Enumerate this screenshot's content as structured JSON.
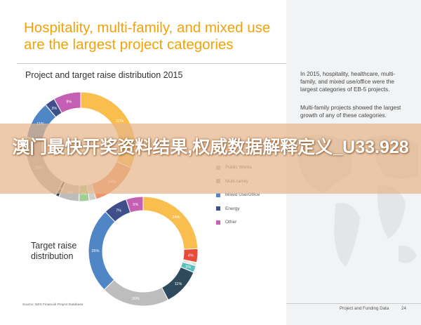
{
  "headline": "Hospitality, multi-family, and mixed use are the largest project categories",
  "subtitle": "Project and target raise distribution 2015",
  "side_notes": [
    "In 2015, hospitality, healthcare, multi-family, and mixed use/office were the largest categories of EB-5 projects.",
    "Multi-family projects showed the largest growth of any of these categories."
  ],
  "target_label": "Target raise distribution",
  "source": "Source: NES Financial Project Database",
  "footer": {
    "title": "Project and Funding Data",
    "page": "24"
  },
  "overlay_text": "澳门最快开奖资料结果,权威数据解释定义_U33.928",
  "colors": {
    "hospitality": "#f9be4e",
    "public_works": "#bdbdbd",
    "multi_family": "#ababab",
    "mixed_use": "#4f86c6",
    "energy": "#3f4f8c",
    "other": "#c55fb4",
    "red": "#e84b3a",
    "teal": "#5cbfbd",
    "darkteal": "#2f4a5c"
  },
  "legend": [
    {
      "label": "Public Works",
      "color": "#bdbdbd",
      "icon": "square-swatch"
    },
    {
      "label": "Multi-family",
      "color": "#ababab",
      "icon": "square-swatch"
    },
    {
      "label": "Mixed Use/Office",
      "color": "#4f86c6",
      "icon": "square-swatch"
    },
    {
      "label": "Energy",
      "color": "#3f4f8c",
      "icon": "square-swatch"
    },
    {
      "label": "Other",
      "color": "#c55fb4",
      "icon": "square-swatch"
    }
  ],
  "chart_data": [
    {
      "type": "pie",
      "title": "Project and target raise distribution 2015",
      "donut": true,
      "slices": [
        {
          "value": 31,
          "label": "31%",
          "color": "#f9be4e"
        },
        {
          "value": 14,
          "label": "14%",
          "color": "#f2936a"
        },
        {
          "value": 2,
          "label": "2%",
          "color": "#cfcfcf"
        },
        {
          "value": 3,
          "label": "3%",
          "color": "#9fcf95"
        },
        {
          "value": 6,
          "label": "6%",
          "color": "#bdbdbd"
        },
        {
          "value": 1,
          "label": "1%",
          "color": "#2f4a5c"
        },
        {
          "value": 20,
          "label": "20%",
          "color": "#ababab"
        },
        {
          "value": 11,
          "label": "11%",
          "color": "#4f86c6"
        },
        {
          "value": 3,
          "label": "3%",
          "color": "#3f4f8c"
        },
        {
          "value": 8,
          "label": "8%",
          "color": "#c55fb4"
        }
      ]
    },
    {
      "type": "pie",
      "title": "Target raise distribution",
      "donut": true,
      "slices": [
        {
          "value": 24,
          "label": "24%",
          "color": "#f9be4e"
        },
        {
          "value": 4,
          "label": "4%",
          "color": "#e84b3a"
        },
        {
          "value": 1,
          "label": "1%",
          "color": "#e0e0e0"
        },
        {
          "value": 2,
          "label": "2%",
          "color": "#5cbfbd"
        },
        {
          "value": 11,
          "label": "11%",
          "color": "#2f4a5c"
        },
        {
          "value": 20,
          "label": "20%",
          "color": "#bdbdbd"
        },
        {
          "value": 25,
          "label": "25%",
          "color": "#4f86c6"
        },
        {
          "value": 7,
          "label": "7%",
          "color": "#3f4f8c"
        },
        {
          "value": 5,
          "label": "5%",
          "color": "#c55fb4"
        }
      ]
    }
  ]
}
